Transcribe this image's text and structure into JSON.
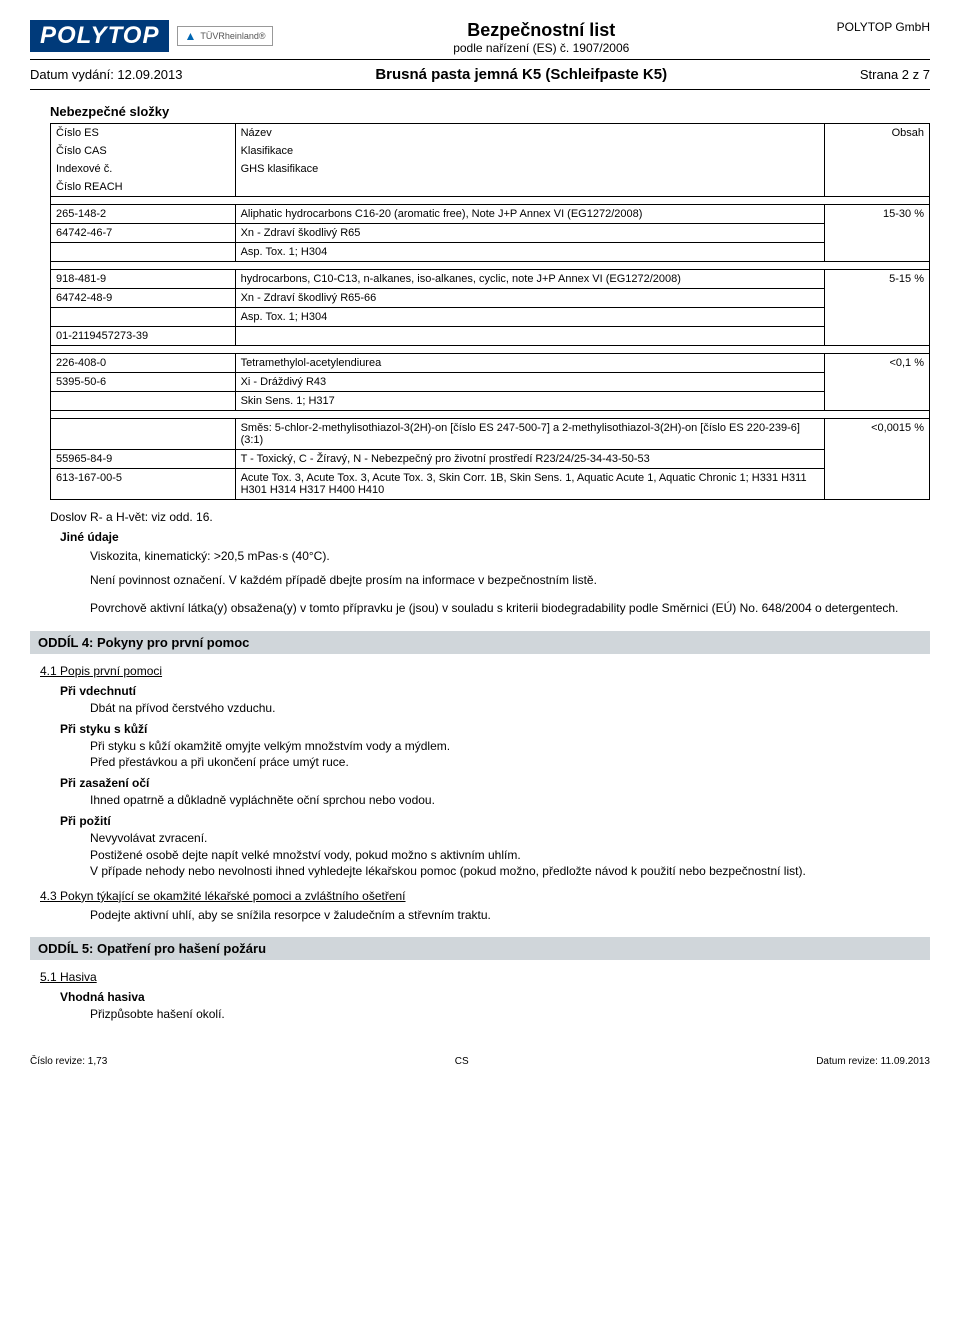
{
  "header": {
    "logo_text": "POLYTOP",
    "tuv_text": "TÜVRheinland®",
    "title_main": "Bezpečnostní list",
    "title_sub": "podle nařízení (ES) č. 1907/2006",
    "company": "POLYTOP GmbH",
    "issue_label": "Datum vydání: 12.09.2013",
    "product": "Brusná pasta jemná K5 (Schleifpaste K5)",
    "page": "Strana 2 z 7"
  },
  "components": {
    "heading": "Nebezpečné složky",
    "head_rows": [
      {
        "c1": "Číslo ES",
        "c2": "Název",
        "c3": "Obsah"
      },
      {
        "c1": "Číslo CAS",
        "c2": "Klasifikace",
        "c3": ""
      },
      {
        "c1": "Indexové č.",
        "c2": "GHS klasifikace",
        "c3": ""
      },
      {
        "c1": "Číslo REACH",
        "c2": "",
        "c3": ""
      }
    ],
    "groups": [
      {
        "rows": [
          {
            "c1": "265-148-2",
            "c2": "Aliphatic hydrocarbons C16-20 (aromatic free), Note J+P Annex VI (EG1272/2008)",
            "c3": "15-30 %"
          },
          {
            "c1": "64742-46-7",
            "c2": "Xn - Zdraví škodlivý  R65",
            "c3": ""
          },
          {
            "c1": "",
            "c2": "Asp. Tox. 1; H304",
            "c3": ""
          }
        ]
      },
      {
        "rows": [
          {
            "c1": "918-481-9",
            "c2": "hydrocarbons, C10-C13, n-alkanes, iso-alkanes, cyclic, note J+P Annex VI (EG1272/2008)",
            "c3": "5-15 %"
          },
          {
            "c1": "64742-48-9",
            "c2": "Xn - Zdraví škodlivý  R65-66",
            "c3": ""
          },
          {
            "c1": "",
            "c2": "Asp. Tox. 1; H304",
            "c3": ""
          },
          {
            "c1": "01-2119457273-39",
            "c2": "",
            "c3": ""
          }
        ]
      },
      {
        "rows": [
          {
            "c1": "226-408-0",
            "c2": "Tetramethylol-acetylendiurea",
            "c3": "<0,1 %"
          },
          {
            "c1": "5395-50-6",
            "c2": "Xi - Dráždivý  R43",
            "c3": ""
          },
          {
            "c1": "",
            "c2": "Skin Sens. 1; H317",
            "c3": ""
          }
        ]
      },
      {
        "rows": [
          {
            "c1": "",
            "c2": "Směs: 5-chlor-2-methylisothiazol-3(2H)-on [číslo ES 247-500-7] a 2-methylisothiazol-3(2H)-on [číslo ES 220-239-6] (3:1)",
            "c3": "<0,0015 %"
          },
          {
            "c1": "55965-84-9",
            "c2": "T - Toxický, C - Žíravý, N - Nebezpečný pro životní prostředí  R23/24/25-34-43-50-53",
            "c3": ""
          },
          {
            "c1": "613-167-00-5",
            "c2": "Acute Tox. 3, Acute Tox. 3, Acute Tox. 3, Skin Corr. 1B, Skin Sens. 1, Aquatic Acute 1, Aquatic Chronic 1; H331 H311 H301 H314 H317 H400 H410",
            "c3": ""
          }
        ]
      }
    ]
  },
  "text": {
    "doslov": "Doslov R- a H-vět: viz odd. 16.",
    "jine_label": "Jiné údaje",
    "jine_p1": "Viskozita, kinematický: >20,5 mPas·s (40°C).",
    "jine_p2": "Není povinnost označení. V každém případě dbejte prosím na informace v bezpečnostním listě.",
    "jine_p3": "Povrchově aktivní látka(y) obsažena(y) v tomto přípravku je (jsou) v souladu s kriterii biodegradability podle Směrnici (EÚ) No. 648/2004 o detergentech."
  },
  "section4": {
    "title": "ODDÍL 4: Pokyny pro první pomoc",
    "s41": "4.1 Popis první pomoci",
    "vdech_label": "Při vdechnutí",
    "vdech_text": "Dbát na přívod čerstvého vzduchu.",
    "kuze_label": "Při styku s kůží",
    "kuze_l1": "Při styku s kůží okamžitě omyjte velkým množstvím vody a mýdlem.",
    "kuze_l2": "Před přestávkou a při ukončení práce umýt ruce.",
    "oci_label": "Při zasažení očí",
    "oci_text": "Ihned opatrně a důkladně vypláchněte oční sprchou nebo vodou.",
    "poziti_label": "Při požití",
    "poziti_l1": "Nevyvolávat zvracení.",
    "poziti_l2": "Postižené osobě dejte napít velké množství vody, pokud možno s aktivním uhlím.",
    "poziti_l3": "V případe nehody nebo nevolnosti ihned vyhledejte lékařskou pomoc (pokud možno, předložte návod k použití nebo bezpečnostní list).",
    "s43_label": "4.3 Pokyn týkající se okamžité lékařské pomoci a zvláštního ošetření",
    "s43_text": "Podejte aktivní uhlí, aby se snížila resorpce v žaludečním a střevním traktu."
  },
  "section5": {
    "title": "ODDÍL 5: Opatření pro hašení požáru",
    "s51": "5.1 Hasiva",
    "vhodna_label": "Vhodná hasiva",
    "vhodna_text": "Přizpůsobte hašení okolí."
  },
  "footer": {
    "rev_num": "Číslo revize: 1,73",
    "lang": "CS",
    "rev_date": "Datum revize: 11.09.2013"
  }
}
